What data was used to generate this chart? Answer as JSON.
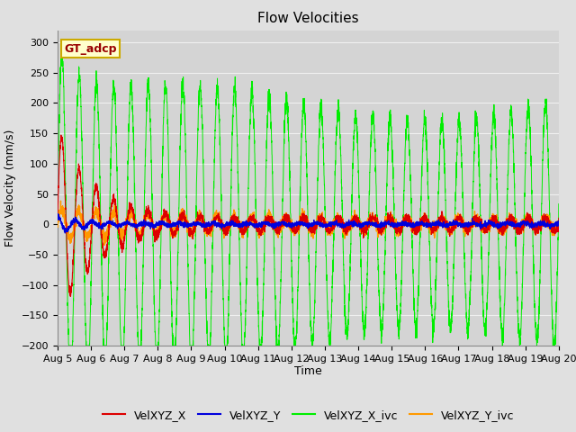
{
  "title": "Flow Velocities",
  "xlabel": "Time",
  "ylabel": "Flow Velocity (mm/s)",
  "ylim": [
    -200,
    320
  ],
  "xlim_days": 15,
  "x_tick_labels": [
    "Aug 5",
    "Aug 6",
    "Aug 7",
    "Aug 8",
    "Aug 9",
    "Aug 10",
    "Aug 11",
    "Aug 12",
    "Aug 13",
    "Aug 14",
    "Aug 15",
    "Aug 16",
    "Aug 17",
    "Aug 18",
    "Aug 19",
    "Aug 20"
  ],
  "yticks": [
    -200,
    -150,
    -100,
    -50,
    0,
    50,
    100,
    150,
    200,
    250,
    300
  ],
  "legend_labels": [
    "VelXYZ_X",
    "VelXYZ_Y",
    "VelXYZ_X_ivc",
    "VelXYZ_Y_ivc"
  ],
  "legend_colors": [
    "#dd0000",
    "#0000dd",
    "#00ee00",
    "#ff9900"
  ],
  "annotation_text": "GT_adcp",
  "annotation_bg": "#ffffcc",
  "annotation_border": "#ccaa00",
  "fig_bg": "#e0e0e0",
  "plot_bg": "#d4d4d4",
  "grid_color": "#f0f0f0",
  "title_fontsize": 11,
  "axis_label_fontsize": 9,
  "tick_fontsize": 8,
  "tidal_period_days": 0.517
}
